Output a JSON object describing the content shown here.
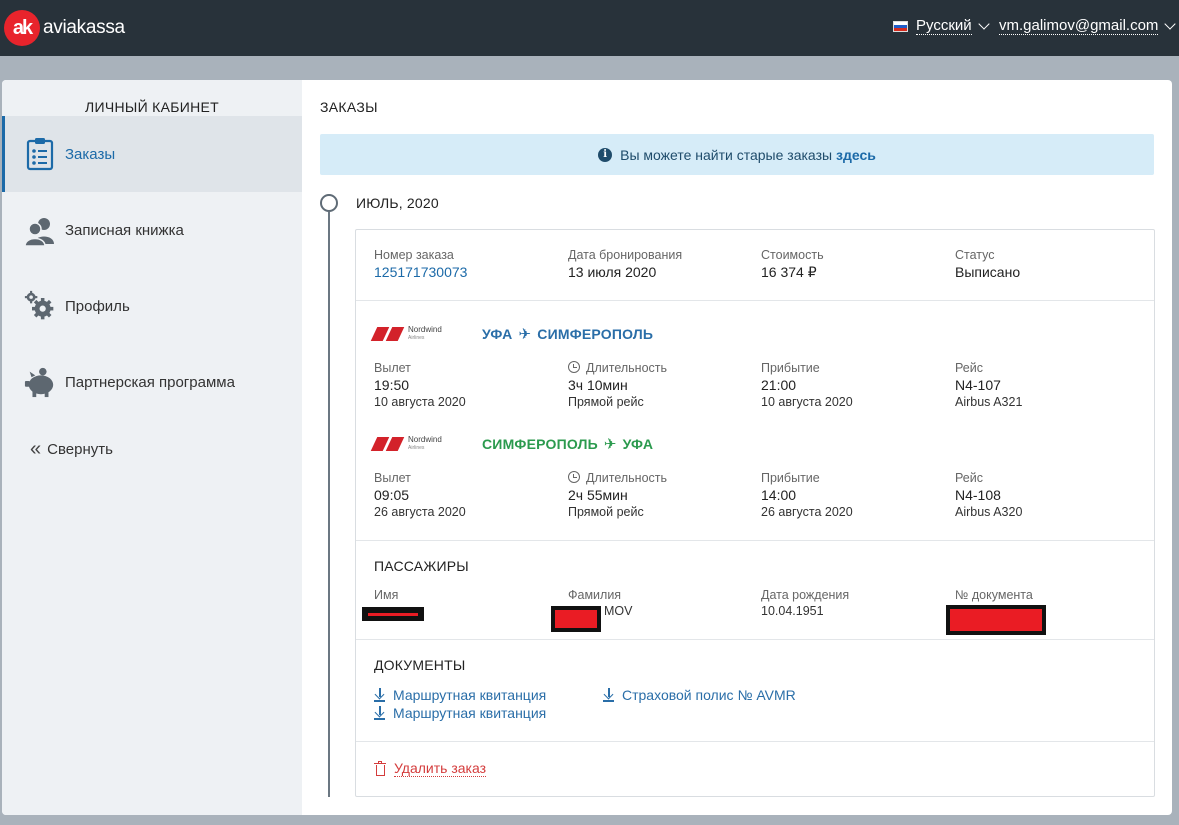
{
  "header": {
    "logo_mark": "ak",
    "logo_text": "aviakassa",
    "language": "Русский",
    "user_email": "vm.galimov@gmail.com"
  },
  "sidebar": {
    "title": "ЛИЧНЫЙ КАБИНЕТ",
    "items": [
      {
        "label": "Заказы",
        "icon": "clipboard-icon",
        "active": true
      },
      {
        "label": "Записная книжка",
        "icon": "contacts-icon",
        "active": false
      },
      {
        "label": "Профиль",
        "icon": "gears-icon",
        "active": false
      },
      {
        "label": "Партнерская программа",
        "icon": "piggy-bank-icon",
        "active": false
      }
    ],
    "collapse_label": "Свернуть"
  },
  "main": {
    "title": "ЗАКАЗЫ",
    "info_text": "Вы можете найти старые заказы",
    "info_link": "здесь",
    "month": "ИЮЛЬ, 2020"
  },
  "order": {
    "summary": {
      "order_number_label": "Номер заказа",
      "order_number": "125171730073",
      "booking_date_label": "Дата бронирования",
      "booking_date": "13 июля 2020",
      "price_label": "Стоимость",
      "price": "16 374 ₽",
      "status_label": "Статус",
      "status": "Выписано"
    },
    "airline_logo_text": "Nordwind",
    "airline_logo_sub": "Airlines",
    "flights": [
      {
        "from": "УФА",
        "to": "СИМФЕРОПОЛЬ",
        "color": "#2a6ea8",
        "departure_label": "Вылет",
        "departure_time": "19:50",
        "departure_date": "10 августа 2020",
        "duration_label": "Длительность",
        "duration": "3ч 10мин",
        "direct": "Прямой рейс",
        "arrival_label": "Прибытие",
        "arrival_time": "21:00",
        "arrival_date": "10 августа 2020",
        "flight_label": "Рейс",
        "flight_number": "N4-107",
        "aircraft": "Airbus A321"
      },
      {
        "from": "СИМФЕРОПОЛЬ",
        "to": "УФА",
        "color": "#2b9a4e",
        "departure_label": "Вылет",
        "departure_time": "09:05",
        "departure_date": "26 августа 2020",
        "duration_label": "Длительность",
        "duration": "2ч 55мин",
        "direct": "Прямой рейс",
        "arrival_label": "Прибытие",
        "arrival_time": "14:00",
        "arrival_date": "26 августа 2020",
        "flight_label": "Рейс",
        "flight_number": "N4-108",
        "aircraft": "Airbus A320"
      }
    ],
    "passengers": {
      "title": "ПАССАЖИРЫ",
      "name_label": "Имя",
      "surname_label": "Фамилия",
      "surname_visible_part": "MOV",
      "birth_label": "Дата рождения",
      "birth_date": "10.04.1951",
      "doc_label": "№ документа"
    },
    "documents": {
      "title": "ДОКУМЕНТЫ",
      "items": [
        "Маршрутная квитанция",
        "Маршрутная квитанция",
        "Страховой полис № AVMR"
      ]
    },
    "delete_label": "Удалить заказ"
  }
}
